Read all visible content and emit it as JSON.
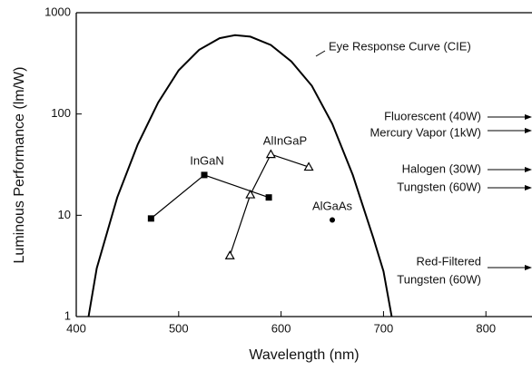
{
  "chart_data": {
    "type": "line",
    "log_y": true,
    "xlabel": "Wavelength (nm)",
    "ylabel": "Luminous Performance (lm/W)",
    "xlim": [
      400,
      845
    ],
    "ylim": [
      1,
      1000
    ],
    "xticks": [
      400,
      500,
      600,
      700,
      800
    ],
    "yticks": [
      1,
      10,
      100,
      1000
    ],
    "series": [
      {
        "name": "Eye Response Curve (CIE)",
        "color": "#000000",
        "marker": "none",
        "x": [
          412,
          420,
          440,
          460,
          480,
          500,
          520,
          540,
          555,
          570,
          590,
          610,
          630,
          650,
          670,
          690,
          700,
          708
        ],
        "values": [
          1,
          3,
          15,
          50,
          130,
          270,
          430,
          560,
          600,
          580,
          480,
          330,
          190,
          80,
          25,
          6,
          2.8,
          1
        ]
      },
      {
        "name": "InGaN",
        "color": "#000000",
        "marker": "square",
        "x": [
          473,
          525,
          588
        ],
        "values": [
          9.3,
          25,
          15
        ]
      },
      {
        "name": "AlInGaP",
        "color": "#000000",
        "marker": "triangle",
        "x": [
          550,
          570,
          590,
          627
        ],
        "values": [
          4,
          16,
          40,
          30
        ]
      },
      {
        "name": "AlGaAs",
        "color": "#000000",
        "marker": "circle",
        "x": [
          650
        ],
        "values": [
          9
        ]
      }
    ],
    "annotations": [
      "Fluorescent (40W)",
      "Mercury Vapor (1kW)",
      "Halogen (30W)",
      "Tungsten (60W)",
      "Red-Filtered",
      "Tungsten (60W)"
    ]
  }
}
